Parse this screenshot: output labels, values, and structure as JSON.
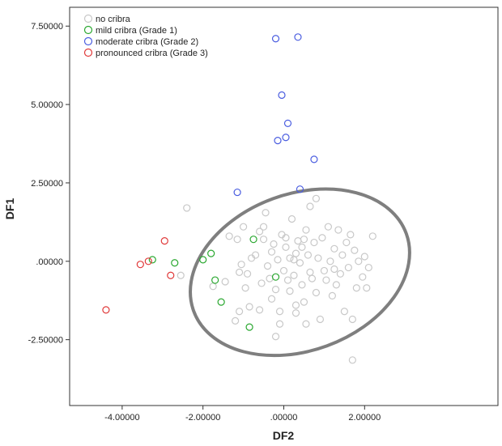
{
  "chart_data": {
    "type": "scatter",
    "xlabel": "DF2",
    "ylabel": "DF1",
    "xlim": [
      -5.3,
      5.3
    ],
    "ylim": [
      -4.6,
      8.1
    ],
    "x_ticks": [
      -4,
      -2,
      0,
      2
    ],
    "x_tick_labels": [
      "-4.00000",
      "-2.00000",
      ".00000",
      "2.00000"
    ],
    "y_ticks": [
      -2.5,
      0,
      2.5,
      5,
      7.5
    ],
    "y_tick_labels": [
      "-2.50000",
      ".00000",
      "2.50000",
      "5.00000",
      "7.50000"
    ],
    "grid": false,
    "legend_position": "top-left",
    "ellipse": {
      "cx": 0.4,
      "cy": -0.35,
      "rx": 2.8,
      "ry": 2.5,
      "angle_deg": -20,
      "color": "#7f7f7f"
    },
    "series": [
      {
        "name": "no cribra",
        "color": "#c8c8c8",
        "points": [
          [
            -2.4,
            1.7
          ],
          [
            -2.55,
            -0.45
          ],
          [
            -1.75,
            -0.8
          ],
          [
            -1.35,
            0.8
          ],
          [
            -1.0,
            1.1
          ],
          [
            -1.45,
            -0.65
          ],
          [
            -1.15,
            0.7
          ],
          [
            -1.1,
            -1.6
          ],
          [
            -1.1,
            -0.35
          ],
          [
            -0.95,
            -0.85
          ],
          [
            -1.05,
            -0.1
          ],
          [
            -0.85,
            -1.45
          ],
          [
            -0.7,
            0.2
          ],
          [
            -0.6,
            0.95
          ],
          [
            -0.55,
            -0.7
          ],
          [
            -0.5,
            1.1
          ],
          [
            -0.5,
            0.7
          ],
          [
            -0.45,
            1.55
          ],
          [
            -0.4,
            -0.15
          ],
          [
            -0.35,
            -0.55
          ],
          [
            -0.3,
            -1.2
          ],
          [
            -0.25,
            0.55
          ],
          [
            -0.2,
            -0.9
          ],
          [
            -0.15,
            0.05
          ],
          [
            -0.1,
            -1.6
          ],
          [
            -0.05,
            0.85
          ],
          [
            0.0,
            -0.3
          ],
          [
            0.05,
            0.45
          ],
          [
            0.05,
            0.75
          ],
          [
            0.1,
            -0.6
          ],
          [
            0.15,
            0.1
          ],
          [
            0.15,
            -0.95
          ],
          [
            0.2,
            1.35
          ],
          [
            0.25,
            -0.45
          ],
          [
            0.3,
            0.25
          ],
          [
            0.3,
            -1.4
          ],
          [
            0.35,
            0.65
          ],
          [
            0.4,
            -0.05
          ],
          [
            0.45,
            -0.75
          ],
          [
            0.5,
            0.7
          ],
          [
            0.5,
            -1.3
          ],
          [
            0.55,
            1.0
          ],
          [
            0.6,
            0.2
          ],
          [
            0.65,
            -0.35
          ],
          [
            0.7,
            -0.55
          ],
          [
            0.75,
            0.6
          ],
          [
            0.8,
            -1.0
          ],
          [
            0.85,
            0.1
          ],
          [
            0.9,
            -1.85
          ],
          [
            0.95,
            0.75
          ],
          [
            1.0,
            -0.3
          ],
          [
            1.05,
            -0.6
          ],
          [
            1.1,
            1.1
          ],
          [
            1.15,
            0.0
          ],
          [
            1.2,
            -1.1
          ],
          [
            1.25,
            0.4
          ],
          [
            1.3,
            -0.75
          ],
          [
            1.35,
            1.0
          ],
          [
            1.4,
            -0.4
          ],
          [
            1.45,
            0.2
          ],
          [
            1.5,
            -1.6
          ],
          [
            1.55,
            0.6
          ],
          [
            1.6,
            -0.2
          ],
          [
            1.65,
            0.85
          ],
          [
            1.7,
            -1.85
          ],
          [
            1.75,
            0.35
          ],
          [
            1.8,
            -0.85
          ],
          [
            1.85,
            0.0
          ],
          [
            1.95,
            -0.5
          ],
          [
            2.0,
            0.15
          ],
          [
            2.1,
            -0.2
          ],
          [
            2.05,
            -0.85
          ],
          [
            2.2,
            0.8
          ],
          [
            1.7,
            -3.15
          ],
          [
            -0.2,
            -2.4
          ],
          [
            -0.1,
            -2.0
          ],
          [
            0.3,
            -1.65
          ],
          [
            0.55,
            -2.0
          ],
          [
            0.8,
            2.0
          ],
          [
            0.65,
            1.75
          ],
          [
            -0.6,
            -1.55
          ],
          [
            -0.8,
            0.1
          ],
          [
            -0.9,
            -0.4
          ],
          [
            -0.3,
            0.3
          ],
          [
            0.25,
            0.05
          ],
          [
            -1.2,
            -1.9
          ],
          [
            1.25,
            -0.25
          ],
          [
            0.45,
            0.45
          ]
        ]
      },
      {
        "name": "mild cribra (Grade 1)",
        "color": "#2aa830",
        "points": [
          [
            -3.25,
            0.05
          ],
          [
            -2.7,
            -0.05
          ],
          [
            -2.0,
            0.05
          ],
          [
            -1.8,
            0.25
          ],
          [
            -1.7,
            -0.6
          ],
          [
            -1.55,
            -1.3
          ],
          [
            -0.85,
            -2.1
          ],
          [
            -0.75,
            0.7
          ],
          [
            -0.2,
            -0.5
          ]
        ]
      },
      {
        "name": "moderate cribra (Grade 2)",
        "color": "#4a5de0",
        "points": [
          [
            -0.2,
            7.1
          ],
          [
            0.35,
            7.15
          ],
          [
            -0.05,
            5.3
          ],
          [
            0.1,
            4.4
          ],
          [
            -0.15,
            3.85
          ],
          [
            0.05,
            3.95
          ],
          [
            0.75,
            3.25
          ],
          [
            -1.15,
            2.2
          ],
          [
            0.4,
            2.3
          ]
        ]
      },
      {
        "name": "pronounced cribra (Grade 3)",
        "color": "#e03a3a",
        "points": [
          [
            -4.4,
            -1.55
          ],
          [
            -3.55,
            -0.1
          ],
          [
            -3.35,
            0.0
          ],
          [
            -2.95,
            0.65
          ],
          [
            -2.8,
            -0.45
          ]
        ]
      }
    ]
  }
}
